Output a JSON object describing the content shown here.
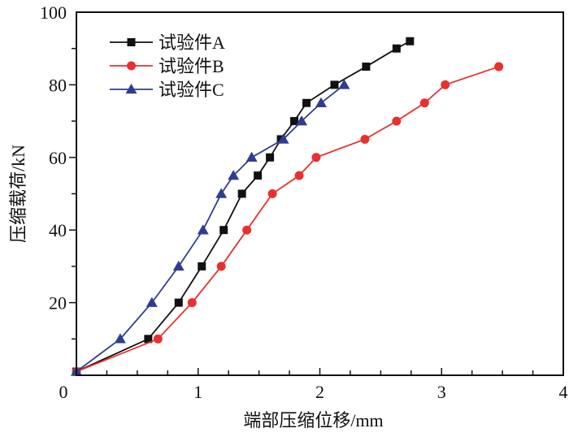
{
  "chart_data": {
    "type": "line",
    "title": "",
    "xlabel": "端部压缩位移/mm",
    "ylabel": "压缩载荷/kN",
    "xlim": [
      0,
      4
    ],
    "ylim": [
      0,
      100
    ],
    "x_ticks": [
      0,
      1,
      2,
      3,
      4
    ],
    "x_tick_labels": [
      "0",
      "1",
      "2",
      "3",
      "4"
    ],
    "y_ticks": [
      20,
      40,
      60,
      80,
      100
    ],
    "y_tick_labels": [
      "20",
      "40",
      "60",
      "80",
      "100"
    ],
    "x_minor_step": 0.25,
    "y_minor_step": 10,
    "grid": false,
    "legend_position": "top-left",
    "series": [
      {
        "name": "试验件A",
        "color": "#111111",
        "marker": "square",
        "x": [
          0,
          0.59,
          0.84,
          1.03,
          1.21,
          1.36,
          1.49,
          1.59,
          1.68,
          1.79,
          1.89,
          2.12,
          2.38,
          2.63,
          2.74
        ],
        "y": [
          1,
          10,
          20,
          30,
          40,
          50,
          55,
          60,
          65,
          70,
          75,
          80,
          85,
          90,
          92
        ]
      },
      {
        "name": "试验件B",
        "color": "#e8312f",
        "marker": "circle",
        "x": [
          0,
          0.67,
          0.95,
          1.19,
          1.4,
          1.61,
          1.83,
          1.97,
          2.37,
          2.63,
          2.86,
          3.03,
          3.47
        ],
        "y": [
          1,
          10,
          20,
          30,
          40,
          50,
          55,
          60,
          65,
          70,
          75,
          80,
          85
        ]
      },
      {
        "name": "试验件C",
        "color": "#2e3d91",
        "marker": "triangle",
        "x": [
          0,
          0.36,
          0.62,
          0.84,
          1.04,
          1.19,
          1.29,
          1.44,
          1.7,
          1.85,
          2.01,
          2.2
        ],
        "y": [
          1,
          10,
          20,
          30,
          40,
          50,
          55,
          60,
          65,
          70,
          75,
          80
        ]
      }
    ]
  }
}
